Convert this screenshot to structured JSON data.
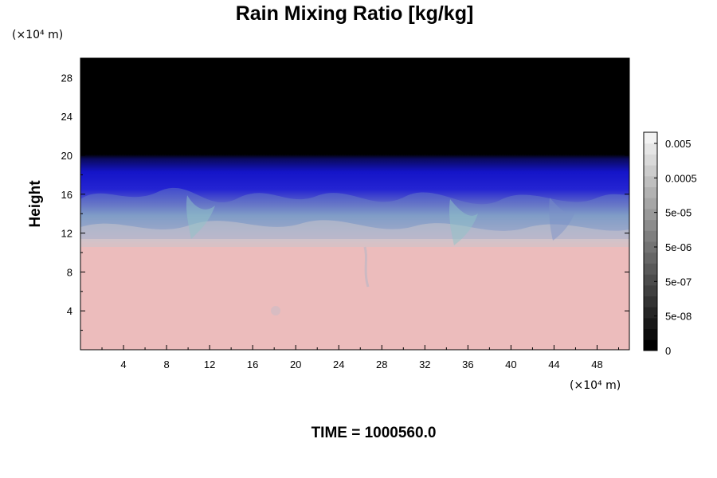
{
  "chart_data": {
    "type": "heatmap",
    "title": "Rain Mixing Ratio [kg/kg]",
    "ylabel": "Height",
    "y_unit": "(×10⁴ m)",
    "x_unit": "(×10⁴ m)",
    "xlim": [
      0,
      51
    ],
    "ylim": [
      0,
      30
    ],
    "x_ticks": [
      4,
      8,
      12,
      16,
      20,
      24,
      28,
      32,
      36,
      40,
      44,
      48
    ],
    "y_ticks": [
      4,
      8,
      12,
      16,
      20,
      24,
      28
    ],
    "x_tick_labels": [
      "4",
      "8",
      "12",
      "16",
      "20",
      "24",
      "28",
      "32",
      "36",
      "40",
      "44",
      "48"
    ],
    "y_tick_labels": [
      "4",
      "8",
      "12",
      "16",
      "20",
      "24",
      "28"
    ],
    "field_description": {
      "regions": [
        {
          "from_height": 0,
          "to_height": 12,
          "color": "#ecbcbc"
        },
        {
          "from_height": 12,
          "to_height": 16,
          "color": "#9fb6c6"
        },
        {
          "from_height": 16,
          "to_height": 20,
          "color": "#1414c8"
        },
        {
          "from_height": 20,
          "to_height": 30,
          "color": "#000000"
        }
      ]
    },
    "colorbar": {
      "label_values": [
        "0.005",
        "0.0005",
        "5e-05",
        "5e-06",
        "5e-07",
        "5e-08",
        "0"
      ],
      "levels": 20,
      "color_low": "#000000",
      "color_high": "#f2f2f2"
    },
    "annotation": "TIME = 1000560.0"
  }
}
